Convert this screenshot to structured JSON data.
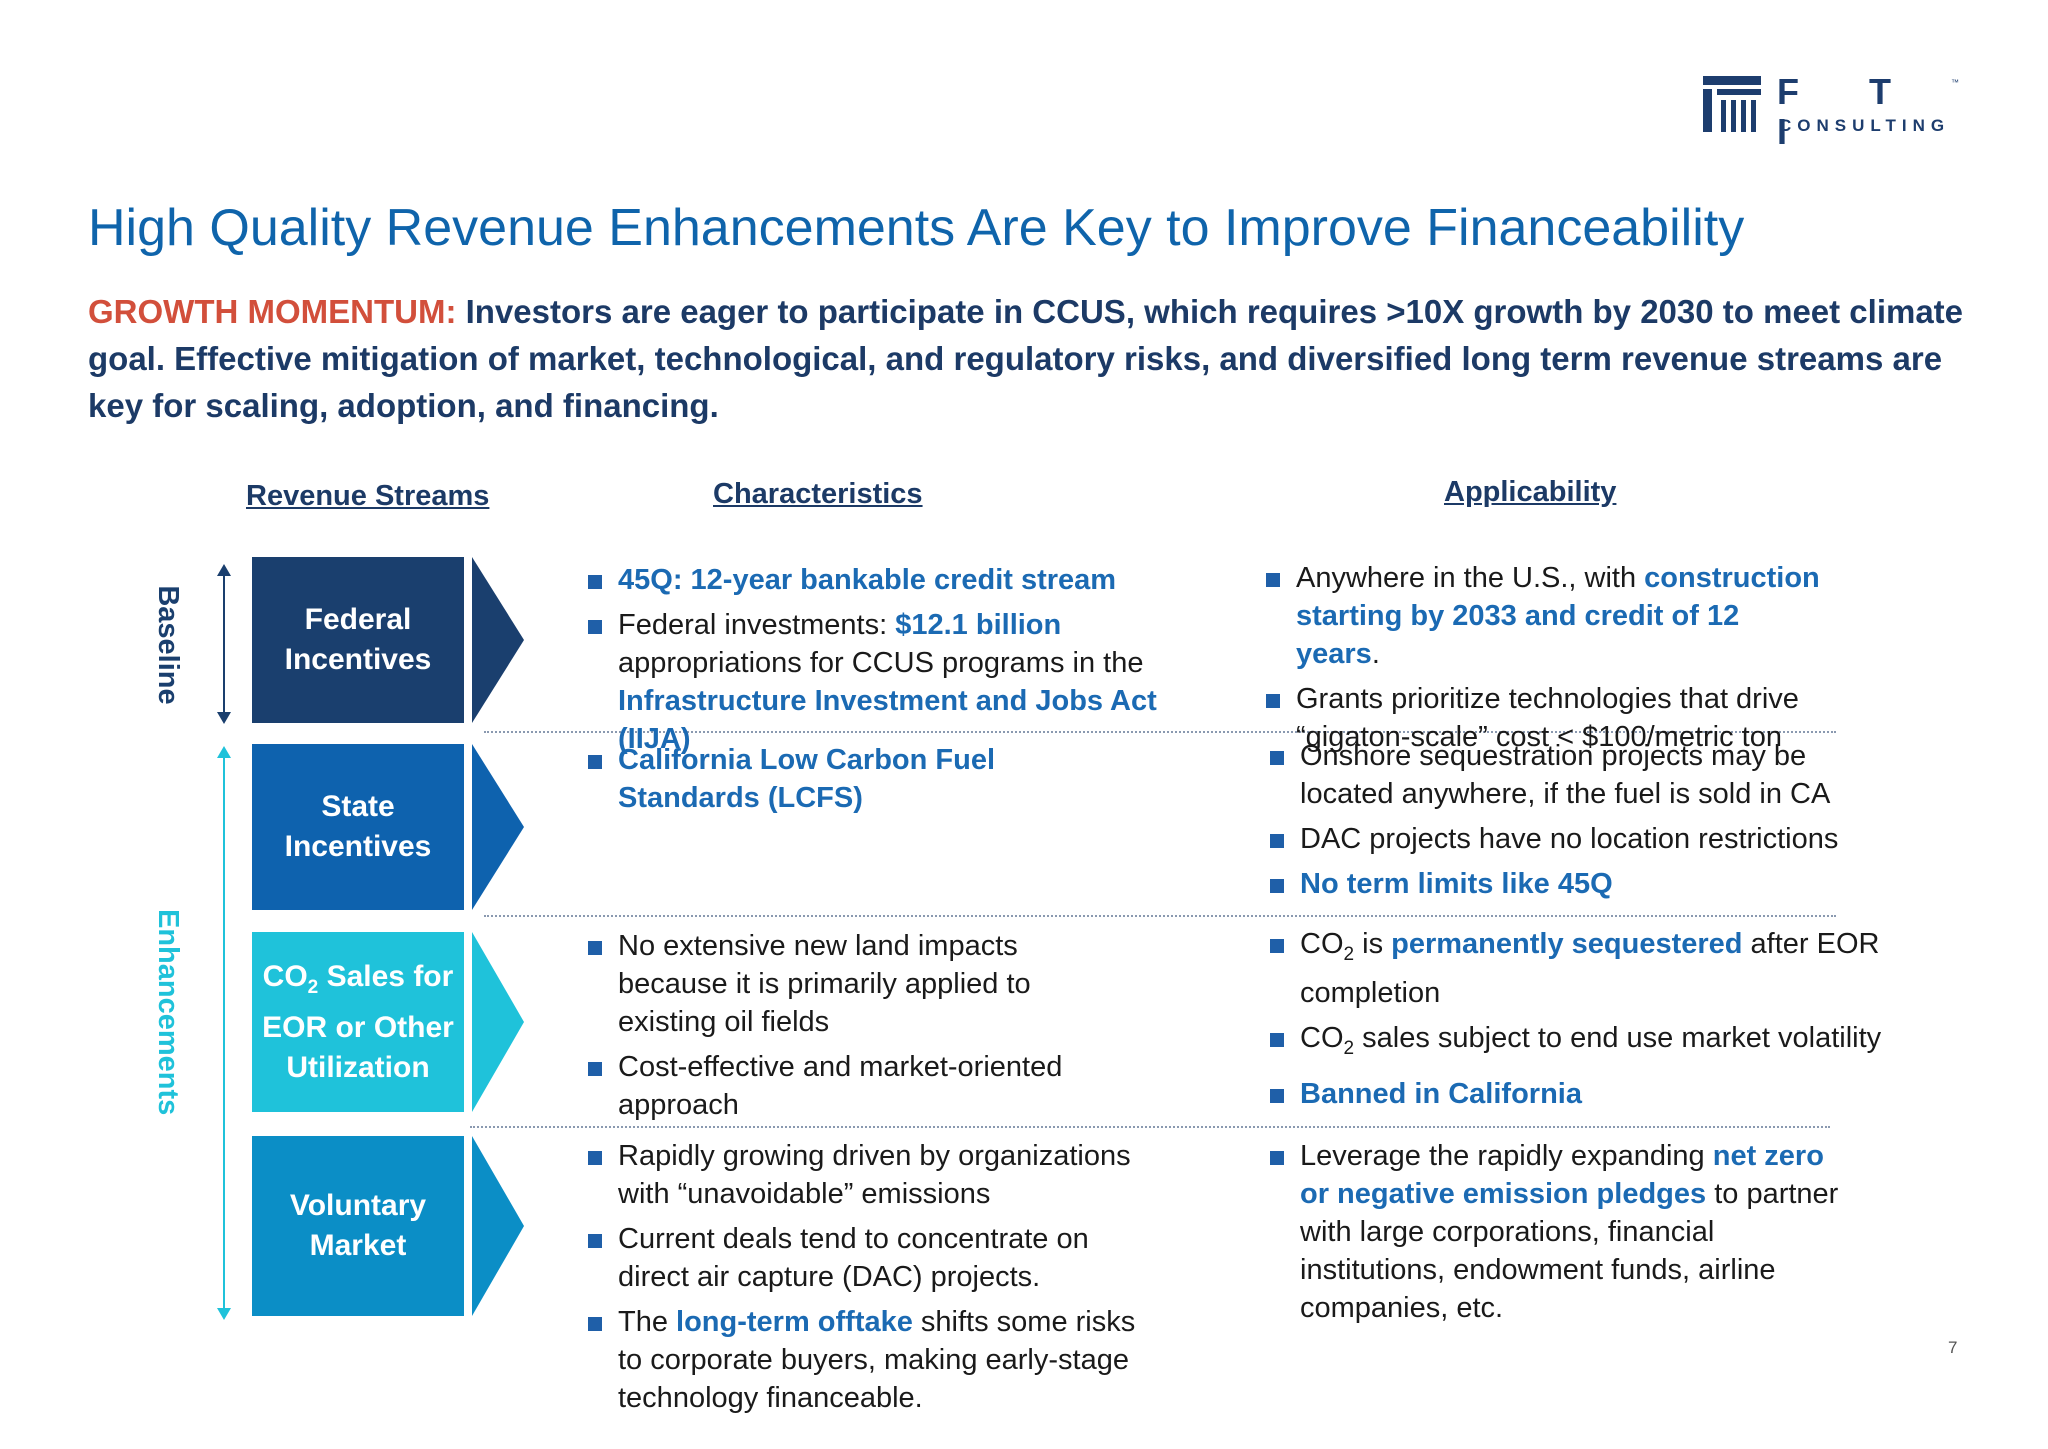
{
  "logo": {
    "letters": "F T I",
    "tm": "™",
    "sub": "CONSULTING"
  },
  "title": "High Quality Revenue Enhancements Are Key to Improve Financeability",
  "intro": {
    "lead": "GROWTH MOMENTUM:",
    "text": " Investors are eager to participate in CCUS, which requires >10X growth by 2030 to meet climate goal. Effective mitigation of market, technological, and regulatory risks, and diversified long term revenue streams are key for scaling, adoption, and financing."
  },
  "headers": {
    "revenue_streams": "Revenue Streams",
    "characteristics": "Characteristics",
    "applicability": "Applicability"
  },
  "side_labels": {
    "baseline": "Baseline",
    "enhancements": "Enhancements"
  },
  "colors": {
    "federal": "#1a3f6e",
    "state": "#0e62ae",
    "co2": "#1fc2da",
    "voluntary": "#0b8ec6",
    "accent_blue": "#1b6ab3",
    "lead_red": "#d24f3b"
  },
  "streams": {
    "federal": {
      "line1": "Federal",
      "line2": "Incentives"
    },
    "state": {
      "line1": "State",
      "line2": "Incentives"
    },
    "co2": {
      "line1a": "CO",
      "line1sub": "2",
      "line1b": " Sales for",
      "line2": "EOR or Other",
      "line3": "Utilization"
    },
    "voluntary": {
      "line1": "Voluntary",
      "line2": "Market"
    }
  },
  "characteristics": {
    "federal": {
      "item1": "45Q: 12-year bankable credit stream",
      "item2_a": "Federal investments: ",
      "item2_b": "$12.1 billion",
      "item2_c": " appropriations for CCUS programs in the ",
      "item2_d": "Infrastructure Investment and Jobs Act (IIJA)"
    },
    "state": {
      "item1": "California Low Carbon Fuel Standards (LCFS)"
    },
    "co2": {
      "item1": "No extensive new land impacts because it is primarily applied to existing oil fields",
      "item2": "Cost-effective and market-oriented approach"
    },
    "voluntary": {
      "item1": "Rapidly growing driven by organizations with “unavoidable” emissions",
      "item2": "Current deals tend to concentrate on direct air capture (DAC) projects.",
      "item3_a": "The ",
      "item3_b": "long-term offtake",
      "item3_c": " shifts some risks to corporate buyers, making early-stage technology financeable."
    }
  },
  "applicability": {
    "federal": {
      "item1_a": "Anywhere in the U.S., with ",
      "item1_b": "construction starting by 2033 and credit of 12 years",
      "item1_c": ".",
      "item2": "Grants prioritize technologies that drive “gigaton-scale” cost < $100/metric ton"
    },
    "state": {
      "item1": "Onshore sequestration projects may be located anywhere, if the fuel is sold in CA",
      "item2": "DAC projects have no location restrictions",
      "item3": "No term limits like 45Q"
    },
    "co2": {
      "item1_a": "CO",
      "item1_sub": "2",
      "item1_b": " is ",
      "item1_c": "permanently sequestered",
      "item1_d": " after EOR completion",
      "item2_a": "CO",
      "item2_sub": "2",
      "item2_b": " sales subject to end use market volatility",
      "item3": "Banned in California"
    },
    "voluntary": {
      "item1_a": "Leverage the rapidly expanding ",
      "item1_b": "net zero or negative emission pledges",
      "item1_c": " to partner with large corporations, financial institutions, endowment funds, airline companies, etc."
    }
  },
  "page_number": "7"
}
